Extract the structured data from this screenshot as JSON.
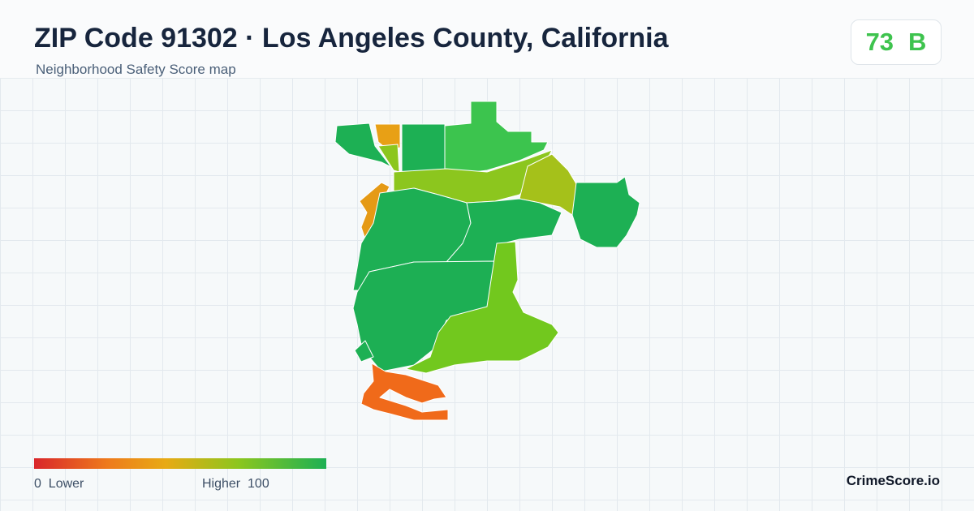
{
  "header": {
    "title": "ZIP Code 91302 · Los Angeles County, California",
    "subtitle": "Neighborhood Safety Score map"
  },
  "score": {
    "value": "73",
    "grade": "B"
  },
  "legend": {
    "min": "0",
    "min_label": "Lower",
    "max_label": "Higher",
    "max": "100"
  },
  "brand": "CrimeScore.io"
}
